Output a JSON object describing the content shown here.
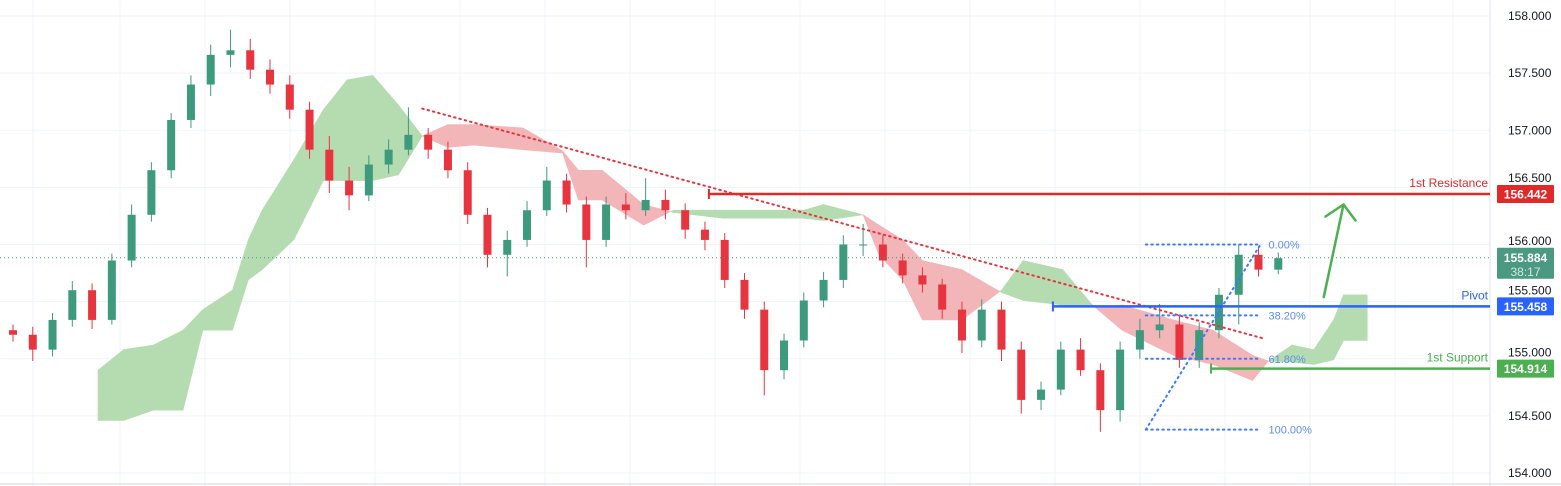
{
  "chart_data": {
    "type": "candlestick",
    "title": "",
    "xlabel": "",
    "ylabel": "",
    "ylim": [
      154.0,
      158.0
    ],
    "y_ticks": [
      "158.000",
      "157.500",
      "157.000",
      "156.500",
      "156.000",
      "155.500",
      "155.000",
      "154.500",
      "154.000"
    ],
    "grid": true,
    "colors": {
      "up": "#3d9a7c",
      "down": "#e8343f",
      "cloud_bull": "#b5dcb0",
      "cloud_bear": "#f2b5b8",
      "resistance": "#e02a2a",
      "pivot": "#2962ff",
      "support": "#4caf50",
      "fib": "#3b7bff",
      "trendline": "#e8343f",
      "last_price": "#4a9980"
    },
    "ohlc": [
      [
        155.25,
        155.3,
        155.15,
        155.21
      ],
      [
        155.21,
        155.28,
        154.98,
        155.08
      ],
      [
        155.08,
        155.4,
        155.02,
        155.34
      ],
      [
        155.34,
        155.68,
        155.28,
        155.6
      ],
      [
        155.6,
        155.66,
        155.26,
        155.34
      ],
      [
        155.34,
        155.92,
        155.3,
        155.86
      ],
      [
        155.86,
        156.35,
        155.8,
        156.26
      ],
      [
        156.26,
        156.72,
        156.2,
        156.65
      ],
      [
        156.65,
        157.15,
        156.58,
        157.09
      ],
      [
        157.09,
        157.48,
        157.02,
        157.4
      ],
      [
        157.4,
        157.75,
        157.3,
        157.66
      ],
      [
        157.66,
        157.88,
        157.55,
        157.7
      ],
      [
        157.7,
        157.8,
        157.45,
        157.53
      ],
      [
        157.53,
        157.62,
        157.32,
        157.4
      ],
      [
        157.4,
        157.48,
        157.1,
        157.18
      ],
      [
        157.18,
        157.25,
        156.75,
        156.83
      ],
      [
        156.83,
        156.95,
        156.45,
        156.56
      ],
      [
        156.56,
        156.68,
        156.3,
        156.43
      ],
      [
        156.43,
        156.78,
        156.38,
        156.7
      ],
      [
        156.7,
        156.92,
        156.62,
        156.83
      ],
      [
        156.83,
        157.2,
        156.78,
        156.96
      ],
      [
        156.96,
        157.02,
        156.75,
        156.83
      ],
      [
        156.83,
        156.9,
        156.58,
        156.65
      ],
      [
        156.65,
        156.72,
        156.18,
        156.26
      ],
      [
        156.26,
        156.32,
        155.8,
        155.91
      ],
      [
        155.91,
        156.12,
        155.72,
        156.04
      ],
      [
        156.04,
        156.38,
        155.98,
        156.3
      ],
      [
        156.3,
        156.68,
        156.25,
        156.56
      ],
      [
        156.56,
        156.62,
        156.28,
        156.35
      ],
      [
        156.35,
        156.42,
        155.8,
        156.04
      ],
      [
        156.04,
        156.42,
        155.98,
        156.35
      ],
      [
        156.35,
        156.45,
        156.22,
        156.3
      ],
      [
        156.3,
        156.58,
        156.25,
        156.39
      ],
      [
        156.39,
        156.48,
        156.22,
        156.3
      ],
      [
        156.3,
        156.36,
        156.05,
        156.13
      ],
      [
        156.13,
        156.2,
        155.95,
        156.04
      ],
      [
        156.04,
        156.1,
        155.62,
        155.69
      ],
      [
        155.69,
        155.75,
        155.35,
        155.43
      ],
      [
        155.43,
        155.5,
        154.68,
        154.9
      ],
      [
        154.9,
        155.22,
        154.82,
        155.16
      ],
      [
        155.16,
        155.58,
        155.1,
        155.51
      ],
      [
        155.51,
        155.76,
        155.45,
        155.69
      ],
      [
        155.69,
        156.08,
        155.62,
        156.0
      ],
      [
        156.0,
        156.18,
        155.9,
        156.0
      ],
      [
        156.0,
        156.08,
        155.8,
        155.86
      ],
      [
        155.86,
        155.92,
        155.66,
        155.73
      ],
      [
        155.73,
        155.8,
        155.58,
        155.65
      ],
      [
        155.65,
        155.7,
        155.35,
        155.43
      ],
      [
        155.43,
        155.5,
        155.05,
        155.16
      ],
      [
        155.16,
        155.52,
        155.1,
        155.43
      ],
      [
        155.43,
        155.5,
        154.98,
        155.08
      ],
      [
        155.08,
        155.15,
        154.52,
        154.64
      ],
      [
        154.64,
        154.8,
        154.55,
        154.73
      ],
      [
        154.73,
        155.15,
        154.68,
        155.08
      ],
      [
        155.08,
        155.18,
        154.85,
        154.9
      ],
      [
        154.9,
        154.96,
        154.36,
        154.55
      ],
      [
        154.55,
        155.15,
        154.45,
        155.08
      ],
      [
        155.08,
        155.35,
        155.0,
        155.25
      ],
      [
        155.25,
        155.48,
        155.18,
        155.3
      ],
      [
        155.3,
        155.38,
        154.92,
        154.99
      ],
      [
        154.99,
        155.32,
        154.92,
        155.25
      ],
      [
        155.25,
        155.62,
        155.18,
        155.56
      ],
      [
        155.56,
        156.0,
        155.3,
        155.91
      ],
      [
        155.91,
        155.98,
        155.72,
        155.78
      ],
      [
        155.78,
        155.93,
        155.74,
        155.88
      ]
    ],
    "ichimoku_cloud": [
      [
        4.3,
        154.9,
        154.46
      ],
      [
        5.6,
        155.08,
        154.46
      ],
      [
        7.1,
        155.12,
        154.55
      ],
      [
        8.6,
        155.25,
        154.55
      ],
      [
        9.6,
        155.43,
        155.25
      ],
      [
        11.1,
        155.6,
        155.25
      ],
      [
        11.9,
        156.04,
        155.69
      ],
      [
        12.6,
        156.3,
        155.78
      ],
      [
        14.2,
        156.74,
        156.04
      ],
      [
        15.7,
        157.18,
        156.56
      ],
      [
        16.9,
        157.44,
        156.56
      ],
      [
        18.2,
        157.48,
        156.56
      ],
      [
        19.5,
        157.22,
        156.61
      ],
      [
        20.7,
        156.95,
        156.95
      ],
      [
        22,
        156.85,
        157.05
      ],
      [
        23.3,
        156.87,
        157.05
      ],
      [
        25.8,
        156.83,
        157.02
      ],
      [
        27.8,
        156.8,
        156.82
      ],
      [
        28.6,
        156.39,
        156.65
      ],
      [
        29.8,
        156.39,
        156.65
      ],
      [
        31.9,
        156.17,
        156.35
      ],
      [
        33.4,
        156.3,
        156.28
      ],
      [
        35.9,
        156.3,
        156.23
      ],
      [
        40,
        156.3,
        156.23
      ],
      [
        41,
        156.35,
        156.21
      ],
      [
        43,
        156.26,
        156.26
      ],
      [
        43.8,
        155.91,
        156.17
      ],
      [
        45,
        155.69,
        156.04
      ],
      [
        46,
        155.34,
        155.86
      ],
      [
        48,
        155.34,
        155.78
      ],
      [
        50,
        155.6,
        155.58
      ],
      [
        51.1,
        155.86,
        155.51
      ],
      [
        53.1,
        155.78,
        155.47
      ],
      [
        54.6,
        155.47,
        155.45
      ],
      [
        56.1,
        155.25,
        155.47
      ],
      [
        58.7,
        155.03,
        155.34
      ],
      [
        60.7,
        154.95,
        155.25
      ],
      [
        62.7,
        154.81,
        155.03
      ],
      [
        63.5,
        154.98,
        154.98
      ],
      [
        64.7,
        155.12,
        154.97
      ],
      [
        65.8,
        155.08,
        154.95
      ],
      [
        66.8,
        155.34,
        154.99
      ],
      [
        67.3,
        155.56,
        155.16
      ],
      [
        68.5,
        155.56,
        155.16
      ]
    ],
    "trendline": {
      "from": [
        20.7,
        157.19
      ],
      "to": [
        63.2,
        155.18
      ]
    },
    "levels": [
      {
        "label": "1st Resistance",
        "price": 156.442,
        "price_text": "156.442",
        "from_bar": 35.2,
        "color": "#e02a2a"
      },
      {
        "label": "Pivot",
        "price": 155.458,
        "price_text": "155.458",
        "from_bar": 52.6,
        "color": "#2962ff"
      },
      {
        "label": "1st Support",
        "price": 154.914,
        "price_text": "154.914",
        "from_bar": 60.6,
        "color": "#4caf50"
      }
    ],
    "fibonacci": {
      "from_bar": 57.3,
      "to_bar": 63.1,
      "low": 154.38,
      "high": 156.0,
      "levels": [
        {
          "label": "0.00%",
          "price": 156.0
        },
        {
          "label": "38.20%",
          "price": 155.38
        },
        {
          "label": "61.80%",
          "price": 155.0
        },
        {
          "label": "100.00%",
          "price": 154.38
        }
      ]
    },
    "projection_arrow": {
      "from": [
        66.3,
        155.54
      ],
      "to": [
        67.3,
        156.35
      ]
    },
    "last_price": {
      "price": 155.884,
      "price_text": "155.884",
      "countdown": "38:17"
    }
  }
}
